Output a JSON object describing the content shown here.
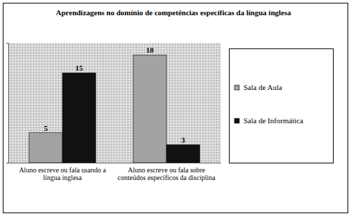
{
  "chart_data": {
    "type": "bar",
    "title": "Aprendizagens no domínio de competências específicas da língua inglesa",
    "categories": [
      "Aluno escreve ou fala usando a língua inglesa",
      "Aluno escreve ou fala sobre conteúdos específicos da disciplina"
    ],
    "series": [
      {
        "name": "Sala de Aula",
        "color": "#a3a3a3",
        "values": [
          5,
          18
        ]
      },
      {
        "name": "Sala de Informática",
        "color": "#111111",
        "values": [
          15,
          3
        ]
      }
    ],
    "ylim": [
      0,
      20
    ],
    "yticks": [
      0,
      20
    ],
    "tick_labels": "x",
    "data_labels": true,
    "legend": "right",
    "grid": false
  }
}
